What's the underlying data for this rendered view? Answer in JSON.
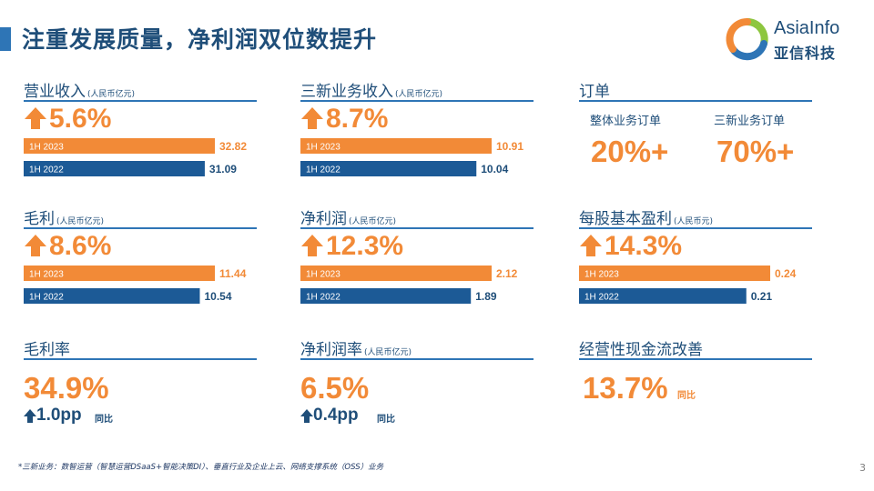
{
  "page": {
    "title": "注重发展质量，净利润双位数提升",
    "page_number": "3",
    "footnote": "*三新业务：数智运营（智慧运营DSaaS+智能决策DI）、垂直行业及企业上云、网络支撑系统（OSS）业务"
  },
  "logo": {
    "en": "AsiaInfo",
    "cn": "亚信科技"
  },
  "colors": {
    "orange": "#f28a37",
    "blue": "#1f4e79",
    "bar_blue": "#1c5a96",
    "accent": "#2e75b6"
  },
  "icons": {
    "growth": "up-arrow-icon"
  },
  "chart_data": [
    {
      "type": "bar",
      "title": "营业收入",
      "unit": "(人民币亿元)",
      "growth": "5.6%",
      "categories": [
        "1H 2023",
        "1H 2022"
      ],
      "values": [
        32.82,
        31.09
      ],
      "value_labels": [
        "32.82",
        "31.09"
      ]
    },
    {
      "type": "bar",
      "title": "三新业务收入",
      "unit": "(人民币亿元)",
      "growth": "8.7%",
      "categories": [
        "1H 2023",
        "1H 2022"
      ],
      "values": [
        10.91,
        10.04
      ],
      "value_labels": [
        "10.91",
        "10.04"
      ]
    },
    {
      "type": "bar",
      "title": "毛利",
      "unit": "(人民币亿元)",
      "growth": "8.6%",
      "categories": [
        "1H 2023",
        "1H 2022"
      ],
      "values": [
        11.44,
        10.54
      ],
      "value_labels": [
        "11.44",
        "10.54"
      ]
    },
    {
      "type": "bar",
      "title": "净利润",
      "unit": "(人民币亿元)",
      "growth": "12.3%",
      "categories": [
        "1H 2023",
        "1H 2022"
      ],
      "values": [
        2.12,
        1.89
      ],
      "value_labels": [
        "2.12",
        "1.89"
      ]
    },
    {
      "type": "bar",
      "title": "每股基本盈利",
      "unit": "(人民币元)",
      "growth": "14.3%",
      "categories": [
        "1H 2023",
        "1H 2022"
      ],
      "values": [
        0.24,
        0.21
      ],
      "value_labels": [
        "0.24",
        "0.21"
      ]
    }
  ],
  "orders": {
    "title": "订单",
    "overall_label": "整体业务订单",
    "overall_value": "20%+",
    "new_label": "三新业务订单",
    "new_value": "70%+"
  },
  "gross_margin": {
    "title": "毛利率",
    "value": "34.9%",
    "change": "1.0pp",
    "tag": "同比"
  },
  "net_margin": {
    "title": "净利润率",
    "unit": "(人民币亿元)",
    "value": "6.5%",
    "change": "0.4pp",
    "tag": "同比"
  },
  "cashflow": {
    "title": "经营性现金流改善",
    "value": "13.7%",
    "tag": "同比"
  }
}
